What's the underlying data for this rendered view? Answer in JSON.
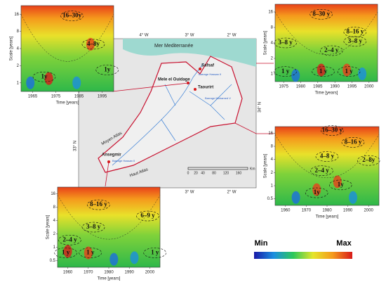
{
  "panels": [
    {
      "y_label": "Scale [years]",
      "x_label": "Time [years]",
      "x_ticks": [
        "1965",
        "1975",
        "1985",
        "1995"
      ],
      "y_ticks": [
        "16",
        "8",
        "4",
        "2",
        "1"
      ],
      "annotations": [
        "16–30y",
        "4–8y",
        "1y",
        "1y"
      ]
    },
    {
      "y_label": "Scale [years]",
      "x_label": "Time [years]",
      "x_ticks": [
        "1975",
        "1980",
        "1985",
        "1990",
        "1995",
        "2000"
      ],
      "y_ticks": [
        "16",
        "8",
        "4",
        "2",
        "1"
      ],
      "annotations": [
        "8–30 y",
        "8–16 y",
        "3–8 y",
        "3–8 y",
        "2–4 y",
        "1 y",
        "1 y",
        "1 y"
      ]
    },
    {
      "y_label": "Scale [years]",
      "x_label": "Time [years]",
      "x_ticks": [
        "1960",
        "1970",
        "1980",
        "1990",
        "2000"
      ],
      "y_ticks": [
        "16",
        "8",
        "4",
        "2",
        "1",
        "0.5"
      ],
      "annotations": [
        "16–30 y",
        "8–16 y",
        "4–8 y",
        "2–8y",
        "2–4 y",
        "1y",
        "1y"
      ]
    },
    {
      "y_label": "Scale [years]",
      "x_label": "Time [years]",
      "x_ticks": [
        "1960",
        "1970",
        "1980",
        "1990",
        "2000"
      ],
      "y_ticks": [
        "16",
        "8",
        "4",
        "2",
        "1",
        "0.5"
      ],
      "annotations": [
        "8–16 y",
        "6–9 y",
        "3–8 y",
        "2–4 y",
        "1 y",
        "1 y",
        "1 y"
      ]
    }
  ],
  "map": {
    "sea": "Mer Mediterranée",
    "stations": [
      "Safsaf",
      "Mele el Ouidage",
      "Taourirt",
      "Ansegmir"
    ],
    "dams": [
      "Barrage Hassan II",
      "Barrage Mohamed V",
      "Barrage Hassan II"
    ],
    "ranges": [
      "Moyen Atlas",
      "Haut Atlas"
    ],
    "longitudes": [
      "4° W",
      "3° W",
      "2° W"
    ],
    "latitudes": [
      "34° N",
      "33° N"
    ],
    "scale": [
      "0",
      "20",
      "40",
      "80",
      "120",
      "160",
      "Km"
    ]
  },
  "legend": {
    "min": "Min",
    "max": "Max"
  }
}
